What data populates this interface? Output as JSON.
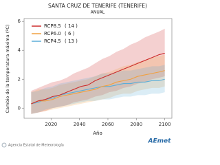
{
  "chart_data": {
    "type": "line",
    "title": "SANTA CRUZ DE TENERIFE (TENERIFE)",
    "subtitle": "ANUAL",
    "y_label": "Cambio de la temperatura máxima (ºC)",
    "x_label": "Año",
    "footer": "Agencia Estatal de Meteorología",
    "logo": "AEmet",
    "x": [
      2006,
      2011,
      2016,
      2021,
      2026,
      2031,
      2036,
      2041,
      2046,
      2051,
      2056,
      2061,
      2066,
      2071,
      2076,
      2081,
      2086,
      2091,
      2096,
      2100
    ],
    "xlim": [
      2001,
      2105
    ],
    "xticks": [
      2020,
      2040,
      2060,
      2080,
      2100
    ],
    "ylim": [
      -0.7,
      6.2
    ],
    "yticks": [
      0,
      2,
      4,
      6
    ],
    "grid": false,
    "legend": "top-left",
    "series": [
      {
        "name": "RCP8.5",
        "models": "( 14 )",
        "color": "#cc2a2a",
        "values": [
          0.3,
          0.5,
          0.6,
          0.8,
          0.9,
          1.1,
          1.3,
          1.5,
          1.6,
          1.9,
          2.1,
          2.3,
          2.5,
          2.7,
          2.9,
          3.1,
          3.3,
          3.5,
          3.7,
          3.8
        ],
        "upper": [
          1.2,
          1.4,
          1.6,
          1.8,
          1.9,
          2.1,
          2.4,
          2.6,
          2.8,
          3.1,
          3.4,
          3.6,
          3.9,
          4.1,
          4.4,
          4.6,
          4.9,
          5.1,
          5.3,
          5.5
        ],
        "lower": [
          -0.4,
          -0.3,
          -0.2,
          0.0,
          0.1,
          0.2,
          0.4,
          0.5,
          0.6,
          0.8,
          0.9,
          1.1,
          1.2,
          1.4,
          1.5,
          1.7,
          1.8,
          2.0,
          2.1,
          2.2
        ]
      },
      {
        "name": "RCP6.0",
        "models": "( 6 )",
        "color": "#f0a040",
        "values": [
          0.3,
          0.5,
          0.5,
          0.6,
          0.8,
          0.9,
          1.0,
          1.1,
          1.2,
          1.3,
          1.5,
          1.6,
          1.8,
          1.9,
          2.0,
          2.2,
          2.3,
          2.4,
          2.5,
          2.6
        ],
        "upper": [
          1.1,
          1.3,
          1.3,
          1.4,
          1.6,
          1.7,
          1.8,
          1.9,
          2.0,
          2.2,
          2.4,
          2.5,
          2.7,
          2.9,
          3.0,
          3.2,
          3.3,
          3.5,
          3.6,
          3.7
        ],
        "lower": [
          -0.4,
          -0.3,
          -0.2,
          -0.1,
          0.0,
          0.1,
          0.2,
          0.3,
          0.4,
          0.5,
          0.6,
          0.7,
          0.9,
          1.0,
          1.0,
          1.2,
          1.3,
          1.4,
          1.4,
          1.5
        ]
      },
      {
        "name": "RCP4.5",
        "models": "( 13 )",
        "color": "#5aaed8",
        "values": [
          0.3,
          0.4,
          0.6,
          0.7,
          0.9,
          1.0,
          1.1,
          1.2,
          1.3,
          1.4,
          1.5,
          1.5,
          1.6,
          1.7,
          1.7,
          1.8,
          1.8,
          1.9,
          1.9,
          2.0
        ],
        "upper": [
          1.1,
          1.2,
          1.4,
          1.5,
          1.7,
          1.8,
          1.9,
          2.0,
          2.1,
          2.2,
          2.4,
          2.4,
          2.5,
          2.6,
          2.6,
          2.7,
          2.8,
          2.9,
          2.9,
          3.0
        ],
        "lower": [
          -0.4,
          -0.3,
          -0.1,
          0.0,
          0.1,
          0.2,
          0.3,
          0.4,
          0.5,
          0.5,
          0.6,
          0.6,
          0.7,
          0.8,
          0.8,
          0.9,
          0.9,
          1.0,
          1.0,
          1.1
        ]
      }
    ]
  }
}
